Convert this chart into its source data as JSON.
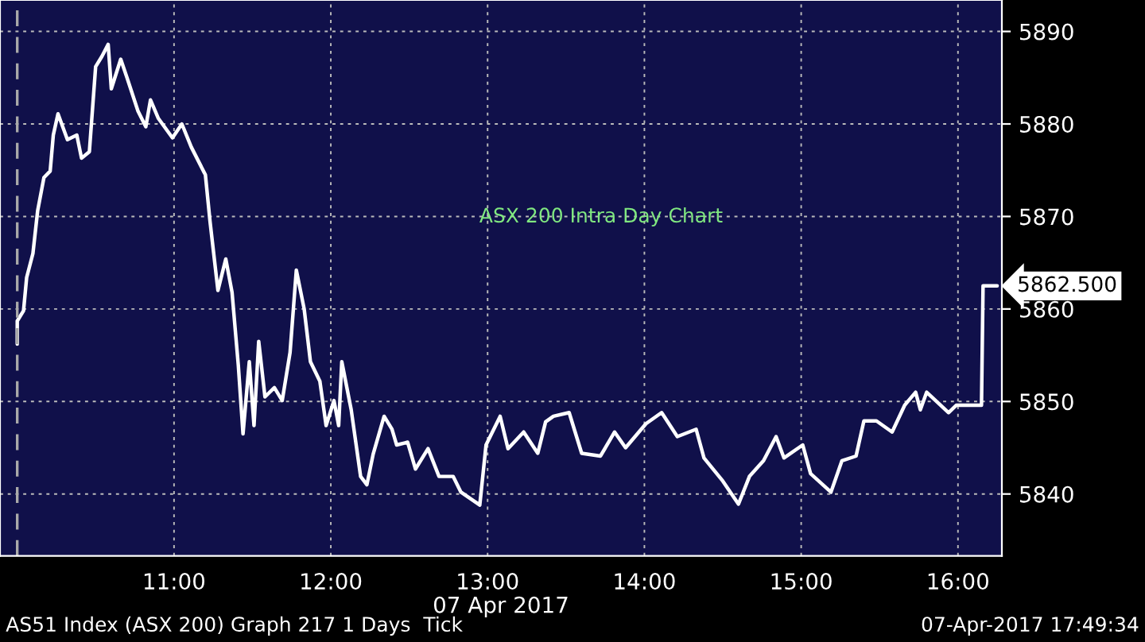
{
  "chart_data": {
    "type": "line",
    "title": "ASX 200 Intra Day Chart",
    "xlabel": "07 Apr 2017",
    "x": [
      10.0,
      10.0,
      10.04,
      10.06,
      10.1,
      10.13,
      10.17,
      10.21,
      10.23,
      10.26,
      10.32,
      10.38,
      10.41,
      10.46,
      10.5,
      10.54,
      10.58,
      10.6,
      10.66,
      10.7,
      10.77,
      10.82,
      10.85,
      10.9,
      10.99,
      11.05,
      11.11,
      11.2,
      11.23,
      11.28,
      11.33,
      11.37,
      11.41,
      11.44,
      11.48,
      11.51,
      11.54,
      11.58,
      11.64,
      11.69,
      11.74,
      11.78,
      11.83,
      11.87,
      11.93,
      11.97,
      12.02,
      12.05,
      12.07,
      12.13,
      12.19,
      12.23,
      12.27,
      12.34,
      12.39,
      12.42,
      12.49,
      12.54,
      12.62,
      12.69,
      12.78,
      12.83,
      12.95,
      12.99,
      13.08,
      13.13,
      13.23,
      13.32,
      13.37,
      13.42,
      13.52,
      13.6,
      13.72,
      13.81,
      13.88,
      14.01,
      14.11,
      14.21,
      14.33,
      14.38,
      14.5,
      14.6,
      14.67,
      14.76,
      14.84,
      14.89,
      15.01,
      15.06,
      15.19,
      15.26,
      15.35,
      15.4,
      15.48,
      15.58,
      15.66,
      15.73,
      15.76,
      15.8,
      15.94,
      15.99,
      16.15,
      16.16,
      16.25
    ],
    "series": [
      {
        "color": "#ffffff",
        "values": [
          5856.2,
          5858.7,
          5859.8,
          5863.4,
          5866,
          5870.6,
          5874.2,
          5874.9,
          5878.8,
          5881.1,
          5878.3,
          5878.8,
          5876.3,
          5877,
          5886.2,
          5887.3,
          5888.6,
          5883.8,
          5887,
          5885,
          5881.4,
          5879.7,
          5882.6,
          5880.6,
          5878.5,
          5880,
          5877.5,
          5874.5,
          5869.4,
          5862,
          5865.4,
          5861.8,
          5853.9,
          5846.5,
          5854.3,
          5847.4,
          5856.5,
          5850.5,
          5851.5,
          5850.1,
          5855.3,
          5864.2,
          5860,
          5854.3,
          5852.2,
          5847.4,
          5850.1,
          5847.4,
          5854.3,
          5849.1,
          5841.9,
          5841,
          5844.3,
          5848.4,
          5847,
          5845.3,
          5845.6,
          5842.7,
          5844.9,
          5841.9,
          5841.9,
          5840.2,
          5838.8,
          5845.3,
          5848.4,
          5844.9,
          5846.7,
          5844.4,
          5847.8,
          5848.4,
          5848.8,
          5844.4,
          5844.1,
          5846.7,
          5845,
          5847.6,
          5848.8,
          5846.2,
          5847,
          5843.9,
          5841.4,
          5838.9,
          5841.9,
          5843.6,
          5846.2,
          5843.9,
          5845.3,
          5842.2,
          5840.2,
          5843.6,
          5844.1,
          5847.9,
          5847.9,
          5846.7,
          5849.6,
          5851,
          5849.1,
          5851,
          5848.8,
          5849.6,
          5849.6,
          5862.5,
          5862.5
        ]
      }
    ],
    "xlim": [
      9.89,
      16.28
    ],
    "ylim": [
      5833.3,
      5893.4
    ],
    "xticks": [
      {
        "value": 11,
        "label": "11:00"
      },
      {
        "value": 12,
        "label": "12:00"
      },
      {
        "value": 13,
        "label": "13:00"
      },
      {
        "value": 14,
        "label": "14:00"
      },
      {
        "value": 15,
        "label": "15:00"
      },
      {
        "value": 16,
        "label": "16:00"
      }
    ],
    "yticks": [
      5840,
      5850,
      5860,
      5870,
      5880,
      5890
    ],
    "grid": true,
    "line_style": "solid",
    "ref_lines": [
      {
        "axis": "x",
        "value": 10.0,
        "line_style": "dashed",
        "color": "#aaaaaa"
      }
    ],
    "annotations": [
      {
        "text": "5862.500",
        "x": 16.25,
        "y": 5862.5
      },
      "AS51 Index (ASX 200) Graph 217 1 Days  Tick",
      "07-Apr-2017 17:49:34"
    ]
  }
}
